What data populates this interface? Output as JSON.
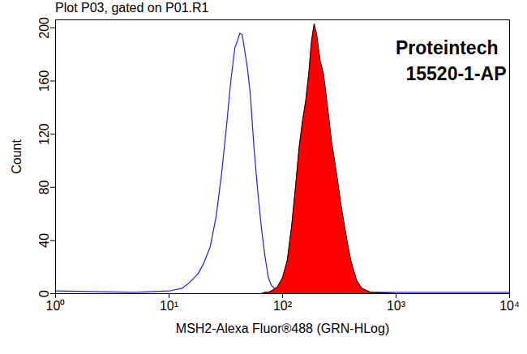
{
  "chart_data": {
    "type": "line",
    "title": "Plot P03, gated on P01.R1",
    "x_label": "MSH2-Alexa Fluor®488 (GRN-HLog)",
    "y_label": "Count",
    "annotations": [
      "Proteintech",
      "15520-1-AP"
    ],
    "log": "x",
    "grid": false,
    "xlim": [
      1,
      10000
    ],
    "xticks": [
      {
        "value": 1,
        "label": "10⁰"
      },
      {
        "value": 10,
        "label": "10¹"
      },
      {
        "value": 100,
        "label": "10²"
      },
      {
        "value": 1000,
        "label": "10³"
      },
      {
        "value": 10000,
        "label": "10⁴"
      }
    ],
    "ylim": [
      0,
      206
    ],
    "yticks": [
      0,
      40,
      80,
      120,
      160,
      200
    ],
    "x": [
      1,
      5,
      10,
      13,
      15,
      18,
      20,
      23,
      26,
      29,
      32,
      35,
      38,
      40,
      42,
      44,
      46,
      49,
      52,
      56,
      60,
      65,
      70,
      75,
      80,
      90,
      100,
      110,
      120,
      130,
      140,
      150,
      160,
      170,
      180,
      190,
      200,
      215,
      230,
      250,
      270,
      300,
      330,
      370,
      400,
      450,
      500,
      600,
      1000,
      10000
    ],
    "series": [
      {
        "type": "line",
        "color": "#2020e0",
        "values": [
          2,
          1,
          2,
          4,
          8,
          15,
          22,
          35,
          58,
          90,
          125,
          160,
          185,
          190,
          196,
          195,
          185,
          170,
          150,
          110,
          80,
          50,
          28,
          12,
          6,
          2,
          1,
          1,
          1,
          1,
          1,
          1,
          1,
          1,
          1,
          1,
          1,
          1,
          1,
          1,
          1,
          1,
          1,
          1,
          1,
          1,
          1,
          1,
          1,
          1
        ]
      },
      {
        "type": "area",
        "color": "#ff0000",
        "values": [
          0,
          0,
          0,
          0,
          0,
          0,
          0,
          0,
          0,
          0,
          0,
          0,
          0,
          0,
          0,
          0,
          0,
          0,
          0,
          0,
          0,
          0,
          1,
          1,
          2,
          5,
          12,
          25,
          50,
          80,
          110,
          130,
          145,
          165,
          190,
          203,
          195,
          175,
          165,
          140,
          115,
          90,
          65,
          40,
          25,
          10,
          4,
          1,
          0,
          0
        ]
      }
    ]
  }
}
